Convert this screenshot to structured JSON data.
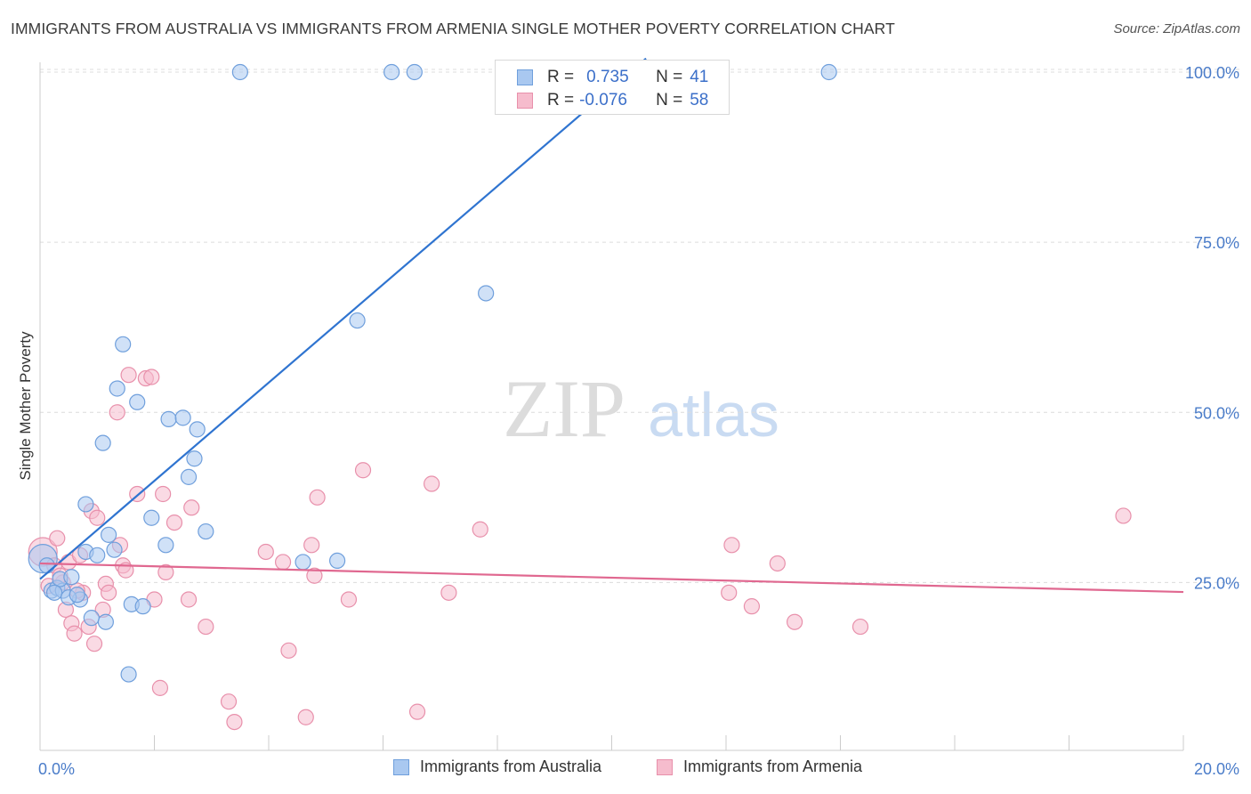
{
  "title": "IMMIGRANTS FROM AUSTRALIA VS IMMIGRANTS FROM ARMENIA SINGLE MOTHER POVERTY CORRELATION CHART",
  "source": "Source: ZipAtlas.com",
  "watermark": {
    "zip": "ZIP",
    "atlas": "atlas"
  },
  "colors": {
    "australia_fill": "#a9c8f0",
    "australia_stroke": "#6f9fdc",
    "australia_line": "#2f74d0",
    "armenia_fill": "#f6bccd",
    "armenia_stroke": "#e890ab",
    "armenia_line": "#e06890",
    "tick_label": "#4a7cc9",
    "grid": "#dcdcdc"
  },
  "stats": {
    "r_label": "R =",
    "n_label": "N =",
    "australia": {
      "r": "0.735",
      "n": "41"
    },
    "armenia": {
      "r": "-0.076",
      "n": "58"
    }
  },
  "legend": {
    "australia": "Immigrants from Australia",
    "armenia": "Immigrants from Armenia"
  },
  "chart_data": {
    "type": "scatter",
    "title": "IMMIGRANTS FROM AUSTRALIA VS IMMIGRANTS FROM ARMENIA SINGLE MOTHER POVERTY CORRELATION CHART",
    "xlabel": "",
    "ylabel": "Single Mother Poverty",
    "xlim": [
      0,
      20
    ],
    "ylim": [
      0,
      102
    ],
    "x_tick_labels": [
      "0.0%",
      "20.0%"
    ],
    "y_ticks": [
      25,
      50,
      75,
      100
    ],
    "y_tick_labels": [
      "25.0%",
      "50.0%",
      "75.0%",
      "100.0%"
    ],
    "grid": true,
    "legend_position": "bottom",
    "series": [
      {
        "name": "Immigrants from Australia",
        "trendline": {
          "x": [
            0.0,
            10.6
          ],
          "y": [
            25.5,
            102.0
          ]
        },
        "points": [
          {
            "x": 0.05,
            "y": 28.5,
            "big": true
          },
          {
            "x": 0.12,
            "y": 27.5
          },
          {
            "x": 0.2,
            "y": 23.8
          },
          {
            "x": 0.3,
            "y": 24.2
          },
          {
            "x": 0.4,
            "y": 23.8
          },
          {
            "x": 0.35,
            "y": 25.5
          },
          {
            "x": 0.55,
            "y": 25.8
          },
          {
            "x": 0.7,
            "y": 22.5
          },
          {
            "x": 0.8,
            "y": 29.5
          },
          {
            "x": 0.8,
            "y": 36.5
          },
          {
            "x": 0.9,
            "y": 19.8
          },
          {
            "x": 1.0,
            "y": 29.0
          },
          {
            "x": 1.1,
            "y": 45.5
          },
          {
            "x": 1.15,
            "y": 19.2
          },
          {
            "x": 1.2,
            "y": 32.0
          },
          {
            "x": 1.3,
            "y": 29.8
          },
          {
            "x": 1.35,
            "y": 53.5
          },
          {
            "x": 1.45,
            "y": 60.0
          },
          {
            "x": 1.55,
            "y": 11.5
          },
          {
            "x": 1.6,
            "y": 21.8
          },
          {
            "x": 1.7,
            "y": 51.5
          },
          {
            "x": 1.8,
            "y": 21.5
          },
          {
            "x": 1.95,
            "y": 34.5
          },
          {
            "x": 2.2,
            "y": 30.5
          },
          {
            "x": 2.25,
            "y": 49.0
          },
          {
            "x": 2.5,
            "y": 49.2
          },
          {
            "x": 2.6,
            "y": 40.5
          },
          {
            "x": 2.7,
            "y": 43.2
          },
          {
            "x": 2.75,
            "y": 47.5
          },
          {
            "x": 2.9,
            "y": 32.5
          },
          {
            "x": 3.5,
            "y": 100.0
          },
          {
            "x": 4.6,
            "y": 28.0
          },
          {
            "x": 5.2,
            "y": 28.2
          },
          {
            "x": 5.55,
            "y": 63.5
          },
          {
            "x": 6.15,
            "y": 100.0
          },
          {
            "x": 6.55,
            "y": 100.0
          },
          {
            "x": 7.8,
            "y": 67.5
          },
          {
            "x": 13.8,
            "y": 100.0
          },
          {
            "x": 0.5,
            "y": 22.8
          },
          {
            "x": 0.25,
            "y": 23.5
          },
          {
            "x": 0.65,
            "y": 23.2
          }
        ]
      },
      {
        "name": "Immigrants from Armenia",
        "trendline": {
          "x": [
            0.0,
            20.0
          ],
          "y": [
            27.8,
            23.6
          ]
        },
        "points": [
          {
            "x": 0.05,
            "y": 29.5,
            "big": true
          },
          {
            "x": 0.15,
            "y": 24.5
          },
          {
            "x": 0.25,
            "y": 27.5
          },
          {
            "x": 0.3,
            "y": 31.5
          },
          {
            "x": 0.4,
            "y": 25.0
          },
          {
            "x": 0.45,
            "y": 21.0
          },
          {
            "x": 0.5,
            "y": 28.0
          },
          {
            "x": 0.55,
            "y": 19.0
          },
          {
            "x": 0.6,
            "y": 17.5
          },
          {
            "x": 0.7,
            "y": 29.0
          },
          {
            "x": 0.75,
            "y": 23.5
          },
          {
            "x": 0.85,
            "y": 18.5
          },
          {
            "x": 0.9,
            "y": 35.5
          },
          {
            "x": 0.95,
            "y": 16.0
          },
          {
            "x": 1.0,
            "y": 34.5
          },
          {
            "x": 1.1,
            "y": 21.0
          },
          {
            "x": 1.15,
            "y": 24.8
          },
          {
            "x": 1.2,
            "y": 23.5
          },
          {
            "x": 1.35,
            "y": 50.0
          },
          {
            "x": 1.4,
            "y": 30.5
          },
          {
            "x": 1.45,
            "y": 27.5
          },
          {
            "x": 1.5,
            "y": 26.8
          },
          {
            "x": 1.55,
            "y": 55.5
          },
          {
            "x": 1.7,
            "y": 38.0
          },
          {
            "x": 1.85,
            "y": 55.0
          },
          {
            "x": 1.95,
            "y": 55.2
          },
          {
            "x": 2.0,
            "y": 22.5
          },
          {
            "x": 2.1,
            "y": 9.5
          },
          {
            "x": 2.15,
            "y": 38.0
          },
          {
            "x": 2.2,
            "y": 26.5
          },
          {
            "x": 2.35,
            "y": 33.8
          },
          {
            "x": 2.6,
            "y": 22.5
          },
          {
            "x": 2.65,
            "y": 36.0
          },
          {
            "x": 2.9,
            "y": 18.5
          },
          {
            "x": 3.3,
            "y": 7.5
          },
          {
            "x": 3.4,
            "y": 4.5
          },
          {
            "x": 3.95,
            "y": 29.5
          },
          {
            "x": 4.25,
            "y": 28.0
          },
          {
            "x": 4.35,
            "y": 15.0
          },
          {
            "x": 4.65,
            "y": 5.2
          },
          {
            "x": 4.75,
            "y": 30.5
          },
          {
            "x": 4.8,
            "y": 26.0
          },
          {
            "x": 4.85,
            "y": 37.5
          },
          {
            "x": 5.4,
            "y": 22.5
          },
          {
            "x": 5.65,
            "y": 41.5
          },
          {
            "x": 6.6,
            "y": 6.0
          },
          {
            "x": 6.85,
            "y": 39.5
          },
          {
            "x": 7.15,
            "y": 23.5
          },
          {
            "x": 7.7,
            "y": 32.8
          },
          {
            "x": 12.05,
            "y": 23.5
          },
          {
            "x": 12.1,
            "y": 30.5
          },
          {
            "x": 12.45,
            "y": 21.5
          },
          {
            "x": 12.9,
            "y": 27.8
          },
          {
            "x": 13.2,
            "y": 19.2
          },
          {
            "x": 14.35,
            "y": 18.5
          },
          {
            "x": 18.95,
            "y": 34.8
          },
          {
            "x": 0.35,
            "y": 26.0
          },
          {
            "x": 0.65,
            "y": 23.8
          }
        ]
      }
    ]
  }
}
